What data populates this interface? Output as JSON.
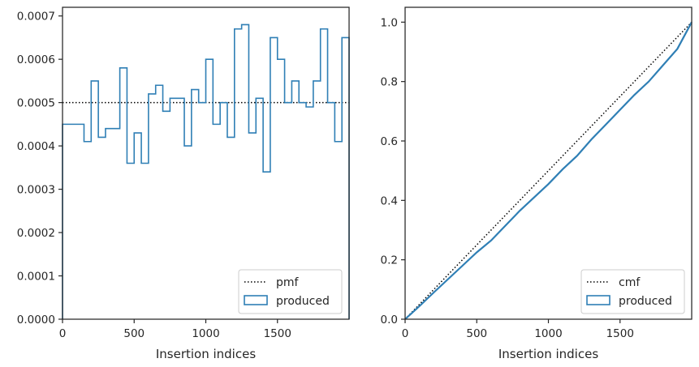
{
  "chart_data": [
    {
      "type": "step",
      "xlabel": "Insertion indices",
      "ylabel": "",
      "title": "",
      "xlim": [
        0,
        2000
      ],
      "ylim": [
        0,
        0.00072
      ],
      "xticks": [
        0,
        500,
        1000,
        1500
      ],
      "xtick_labels": [
        "0",
        "500",
        "1000",
        "1500"
      ],
      "yticks": [
        0,
        0.0001,
        0.0002,
        0.0003,
        0.0004,
        0.0005,
        0.0006,
        0.0007
      ],
      "ytick_labels": [
        "0.0000",
        "0.0001",
        "0.0002",
        "0.0003",
        "0.0004",
        "0.0005",
        "0.0006",
        "0.0007"
      ],
      "legend_position": "lower-right",
      "series": [
        {
          "name": "pmf",
          "style": "dotted",
          "color": "#000000",
          "x": [
            0,
            2000
          ],
          "y": [
            0.0005,
            0.0005
          ]
        },
        {
          "name": "produced",
          "style": "step-histogram",
          "color": "#2f7fb5",
          "bin_edges": [
            0,
            150,
            200,
            250,
            300,
            400,
            450,
            500,
            550,
            600,
            650,
            700,
            750,
            850,
            900,
            950,
            1000,
            1050,
            1100,
            1150,
            1200,
            1250,
            1300,
            1350,
            1400,
            1450,
            1500,
            1550,
            1600,
            1650,
            1700,
            1750,
            1800,
            1850,
            1900,
            1950,
            2000
          ],
          "values": [
            0.00045,
            0.00041,
            0.00055,
            0.00042,
            0.00044,
            0.00058,
            0.00036,
            0.00043,
            0.00036,
            0.00052,
            0.00054,
            0.00048,
            0.00051,
            0.0004,
            0.00053,
            0.0005,
            0.0006,
            0.00045,
            0.0005,
            0.00042,
            0.00067,
            0.00068,
            0.00043,
            0.00051,
            0.00034,
            0.00065,
            0.0006,
            0.0005,
            0.00055,
            0.0005,
            0.00049,
            0.00055,
            0.00067,
            0.0005,
            0.00041,
            0.00065
          ]
        }
      ]
    },
    {
      "type": "line",
      "xlabel": "Insertion indices",
      "ylabel": "",
      "title": "",
      "xlim": [
        0,
        2000
      ],
      "ylim": [
        0,
        1.05
      ],
      "xticks": [
        0,
        500,
        1000,
        1500
      ],
      "xtick_labels": [
        "0",
        "500",
        "1000",
        "1500"
      ],
      "yticks": [
        0,
        0.2,
        0.4,
        0.6,
        0.8,
        1.0
      ],
      "ytick_labels": [
        "0.0",
        "0.2",
        "0.4",
        "0.6",
        "0.8",
        "1.0"
      ],
      "legend_position": "lower-right",
      "series": [
        {
          "name": "cmf",
          "style": "dotted",
          "color": "#000000",
          "x": [
            0,
            2000
          ],
          "y": [
            0,
            1
          ]
        },
        {
          "name": "produced",
          "style": "solid",
          "color": "#2f7fb5",
          "x": [
            0,
            100,
            200,
            300,
            400,
            500,
            600,
            700,
            800,
            900,
            1000,
            1100,
            1200,
            1300,
            1400,
            1500,
            1600,
            1700,
            1800,
            1900,
            2000
          ],
          "y": [
            0,
            0.044,
            0.09,
            0.135,
            0.18,
            0.225,
            0.265,
            0.315,
            0.365,
            0.41,
            0.455,
            0.505,
            0.55,
            0.605,
            0.655,
            0.705,
            0.755,
            0.8,
            0.855,
            0.91,
            1.0
          ]
        }
      ]
    }
  ]
}
